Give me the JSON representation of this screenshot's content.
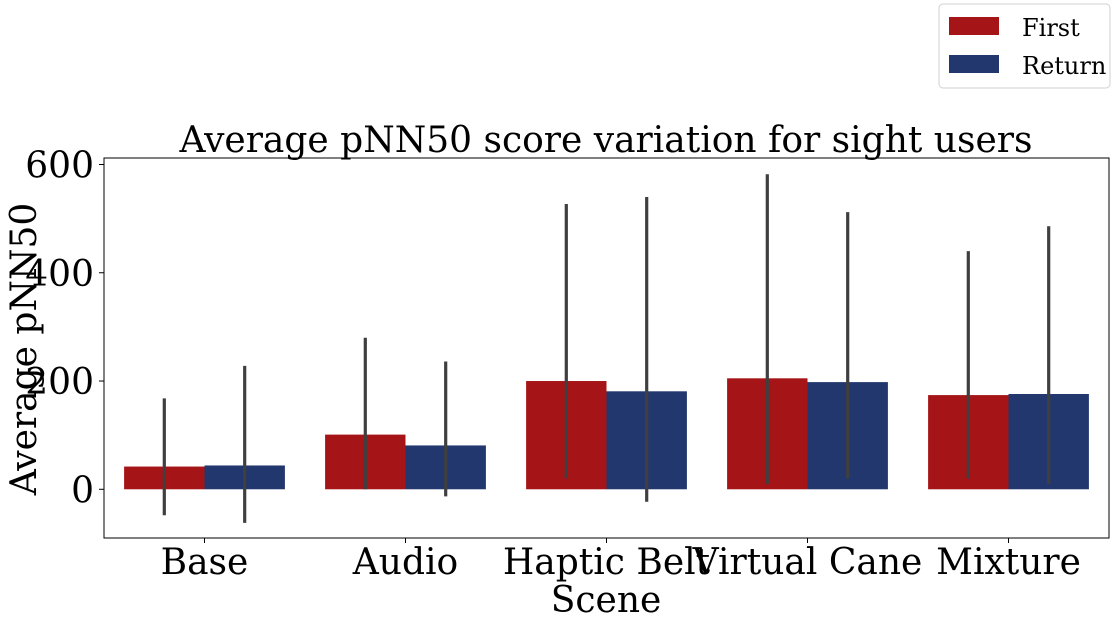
{
  "chart_data": {
    "type": "bar",
    "title": "Average pNN50 score variation for sight users",
    "xlabel": "Scene",
    "ylabel": "Average pNN50",
    "categories": [
      "Base",
      "Audio",
      "Haptic Belt",
      "Virtual Cane",
      "Mixture"
    ],
    "series": [
      {
        "name": "First",
        "color": "#A51417",
        "values": [
          42,
          101,
          200,
          205,
          174
        ],
        "error_low": [
          -48,
          0,
          20,
          10,
          20
        ],
        "error_high": [
          168,
          280,
          527,
          582,
          440
        ]
      },
      {
        "name": "Return",
        "color": "#22376E",
        "values": [
          44,
          81,
          181,
          198,
          176
        ],
        "error_low": [
          -62,
          -13,
          -23,
          20,
          10
        ],
        "error_high": [
          228,
          236,
          540,
          512,
          486
        ]
      }
    ],
    "ylim": [
      -90,
      612
    ],
    "yticks": [
      0,
      200,
      400,
      600
    ],
    "legend_position": "top-right, outside plot",
    "grid": false,
    "errorbar_color": "#3F3F3F"
  }
}
